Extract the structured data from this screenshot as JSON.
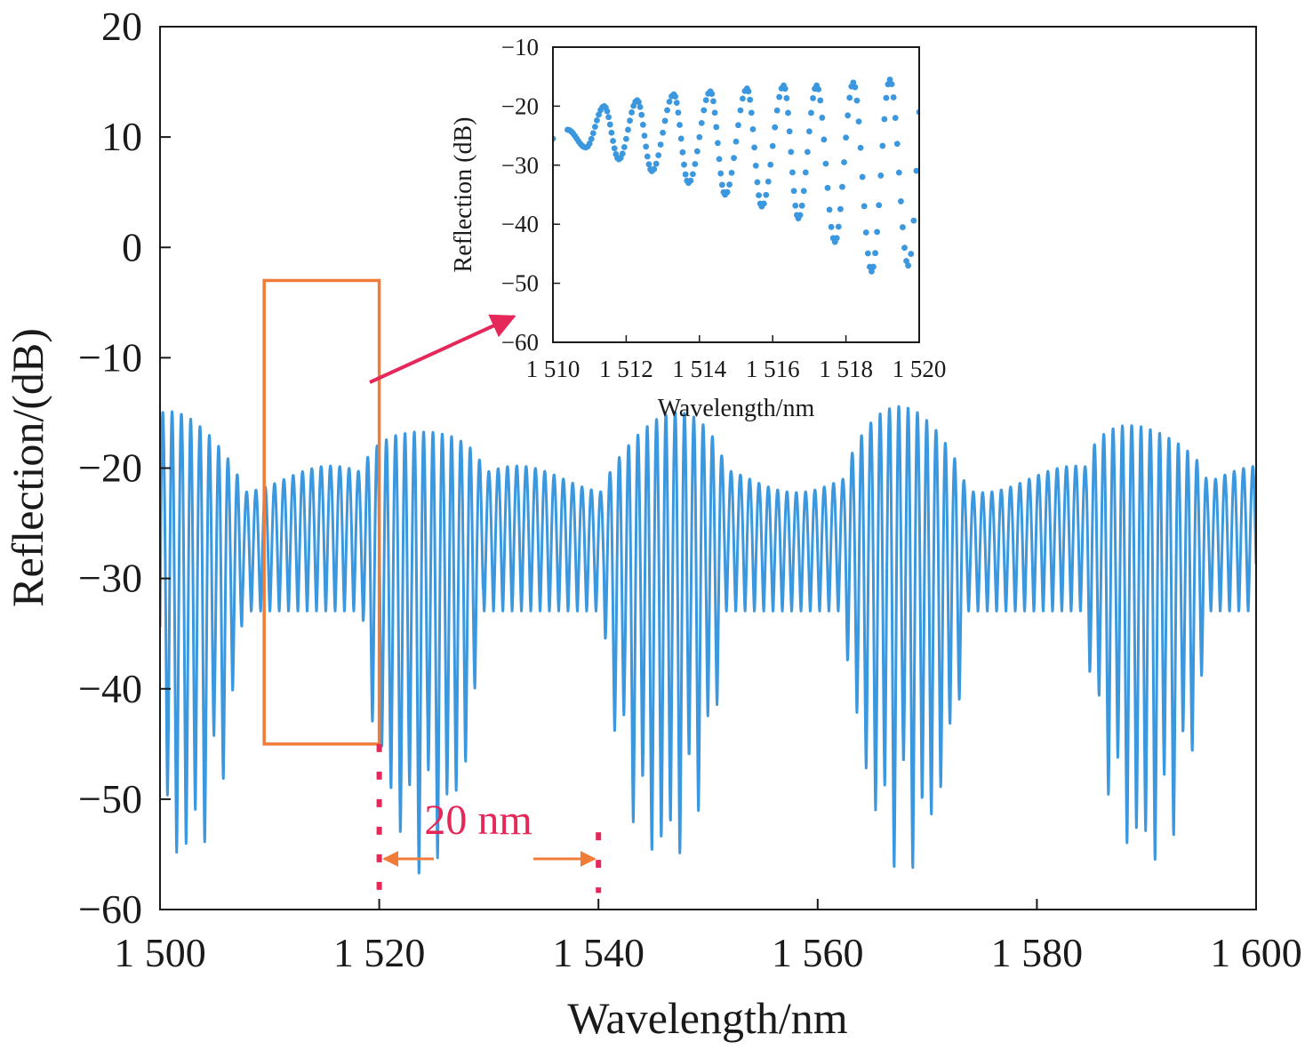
{
  "chart_data": [
    {
      "type": "line",
      "title": "",
      "xlabel": "Wavelength/nm",
      "ylabel": "Reflection/(dB)",
      "xlim": [
        1500,
        1600
      ],
      "ylim": [
        -60,
        20
      ],
      "x_ticks": [
        1500,
        1520,
        1540,
        1560,
        1580,
        1600
      ],
      "x_tick_labels": [
        "1 500",
        "1 520",
        "1 540",
        "1 560",
        "1 580",
        "1 600"
      ],
      "y_ticks": [
        20,
        10,
        0,
        -10,
        -20,
        -30,
        -40,
        -50,
        -60
      ],
      "y_tick_labels": [
        "20",
        "10",
        "0",
        "−10",
        "−20",
        "−30",
        "−40",
        "−50",
        "−60"
      ],
      "series_color": "#3b97de",
      "envelope_period_nm": 22,
      "fringe_period_nm": 0.85,
      "envelope_maxima_x": [
        1502,
        1523,
        1543,
        1565,
        1587
      ],
      "envelope_minima_x": [
        1511,
        1533,
        1555,
        1577,
        1599
      ],
      "peak_level_range_db": [
        -21,
        -15.5
      ],
      "mid_level_db": -30,
      "dip_level_range_db": [
        -57,
        -33
      ],
      "zoom_box": {
        "x_range": [
          1509.5,
          1520
        ],
        "y_range": [
          -45,
          -3
        ],
        "color": "#f07c3a"
      },
      "annotation": {
        "text": "20 nm",
        "x_start": 1520,
        "x_end": 1540,
        "color": "#e5285a",
        "arrow_color": "#f07c3a"
      },
      "grid": false,
      "legend": "none"
    },
    {
      "type": "scatter",
      "title": "",
      "xlabel": "Wavelength/nm",
      "ylabel": "Reflection (dB)",
      "xlim": [
        1510,
        1520
      ],
      "ylim": [
        -60,
        -10
      ],
      "x_ticks": [
        1510,
        1512,
        1514,
        1516,
        1518,
        1520
      ],
      "x_tick_labels": [
        "1 510",
        "1 512",
        "1 514",
        "1 516",
        "1 518",
        "1 520"
      ],
      "y_ticks": [
        -10,
        -20,
        -30,
        -40,
        -50,
        -60
      ],
      "y_tick_labels": [
        "−10",
        "−20",
        "−30",
        "−40",
        "−50",
        "−60"
      ],
      "series_color": "#3b97de",
      "peaks": [
        {
          "x": 1510.4,
          "y": -24
        },
        {
          "x": 1511.4,
          "y": -20
        },
        {
          "x": 1512.3,
          "y": -19
        },
        {
          "x": 1513.3,
          "y": -18
        },
        {
          "x": 1514.3,
          "y": -17.5
        },
        {
          "x": 1515.3,
          "y": -17
        },
        {
          "x": 1516.3,
          "y": -16.5
        },
        {
          "x": 1517.2,
          "y": -16.5
        },
        {
          "x": 1518.2,
          "y": -16
        },
        {
          "x": 1519.2,
          "y": -15.5
        }
      ],
      "dips": [
        {
          "x": 1510.9,
          "y": -27
        },
        {
          "x": 1511.8,
          "y": -29
        },
        {
          "x": 1512.7,
          "y": -31
        },
        {
          "x": 1513.7,
          "y": -33
        },
        {
          "x": 1514.7,
          "y": -35
        },
        {
          "x": 1515.7,
          "y": -37
        },
        {
          "x": 1516.7,
          "y": -39
        },
        {
          "x": 1517.7,
          "y": -43
        },
        {
          "x": 1518.7,
          "y": -48
        },
        {
          "x": 1519.7,
          "y": -47
        }
      ],
      "grid": false,
      "legend": "none"
    }
  ]
}
